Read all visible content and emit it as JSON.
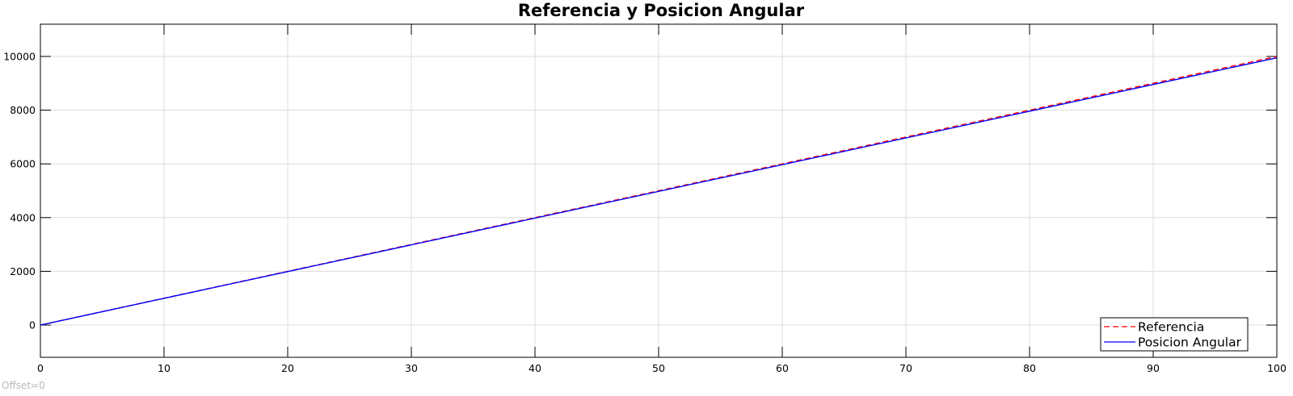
{
  "chart_data": {
    "type": "line",
    "title": "Referencia y Posicion Angular",
    "xlabel": "",
    "ylabel": "",
    "xlim": [
      0,
      100
    ],
    "ylim": [
      -1200,
      11200
    ],
    "xticks": [
      0,
      10,
      20,
      30,
      40,
      50,
      60,
      70,
      80,
      90,
      100
    ],
    "yticks": [
      0,
      2000,
      4000,
      6000,
      8000,
      10000
    ],
    "grid": true,
    "legend_position": "bottom-right",
    "series": [
      {
        "name": "Referencia",
        "color": "#ff0000",
        "style": "dashed",
        "x": [
          0,
          100
        ],
        "y": [
          0,
          10000
        ]
      },
      {
        "name": "Posicion Angular",
        "color": "#0000ff",
        "style": "solid",
        "x": [
          0,
          100
        ],
        "y": [
          0,
          9950
        ]
      }
    ],
    "annotation": "Offset=0"
  }
}
